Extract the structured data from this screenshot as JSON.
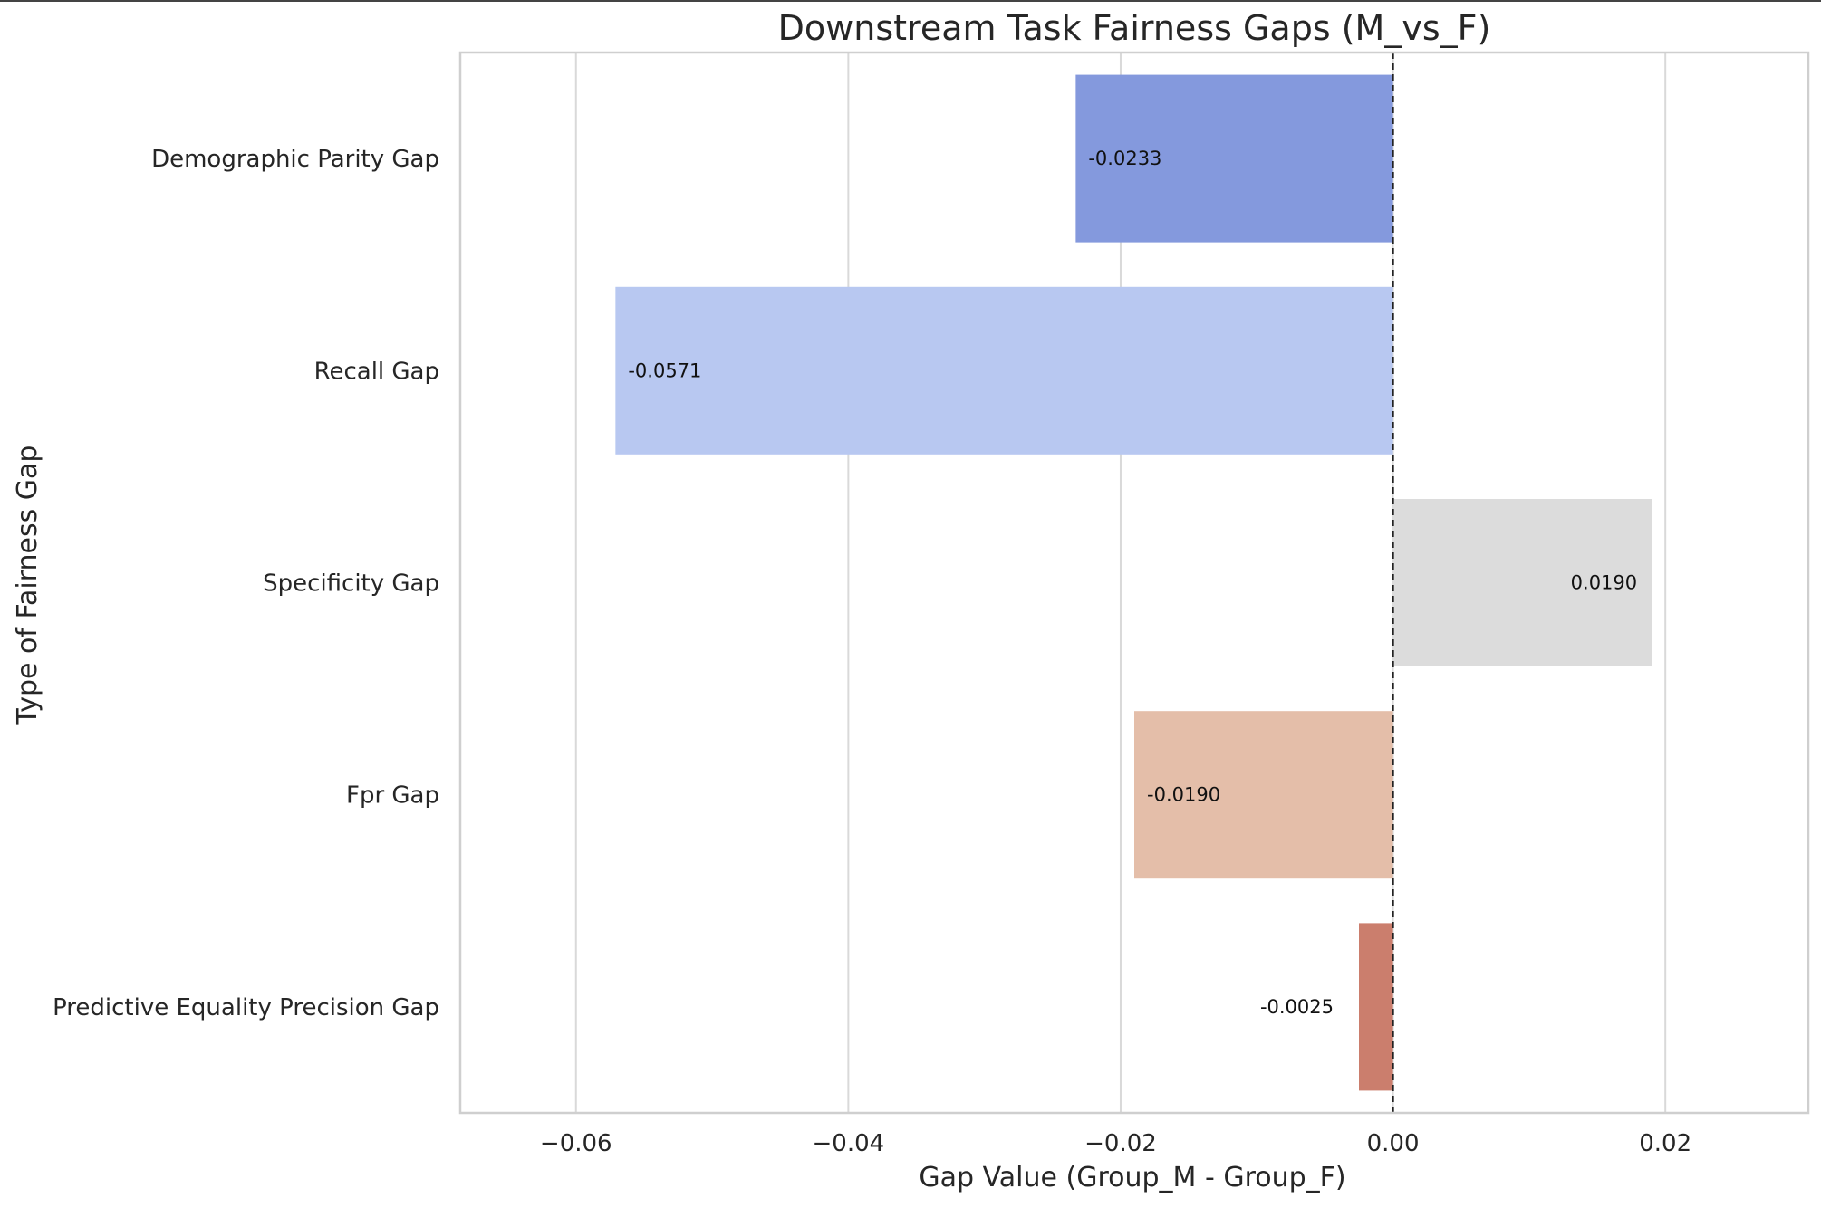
{
  "chart_data": {
    "type": "bar",
    "orientation": "horizontal",
    "title": "Downstream Task Fairness Gaps (M_vs_F)",
    "xlabel": "Gap Value (Group_M - Group_F)",
    "ylabel": "Type of Fairness Gap",
    "categories": [
      "Demographic Parity Gap",
      "Recall Gap",
      "Specificity Gap",
      "Fpr Gap",
      "Predictive Equality Precision Gap"
    ],
    "values": [
      -0.0233,
      -0.0571,
      0.019,
      -0.019,
      -0.0025
    ],
    "value_labels": [
      "-0.0233",
      "-0.0571",
      "0.0190",
      "-0.0190",
      "-0.0025"
    ],
    "colors": [
      "#8499dd",
      "#b8c8f1",
      "#dcdcdc",
      "#e4bea9",
      "#cb7e6d"
    ],
    "xlim": [
      -0.0685,
      0.0305
    ],
    "xticks": [
      -0.06,
      -0.04,
      -0.02,
      0.0,
      0.02
    ],
    "xtick_labels": [
      "−0.06",
      "−0.04",
      "−0.02",
      "0.00",
      "0.02"
    ],
    "grid": true,
    "reference_line": 0.0
  }
}
